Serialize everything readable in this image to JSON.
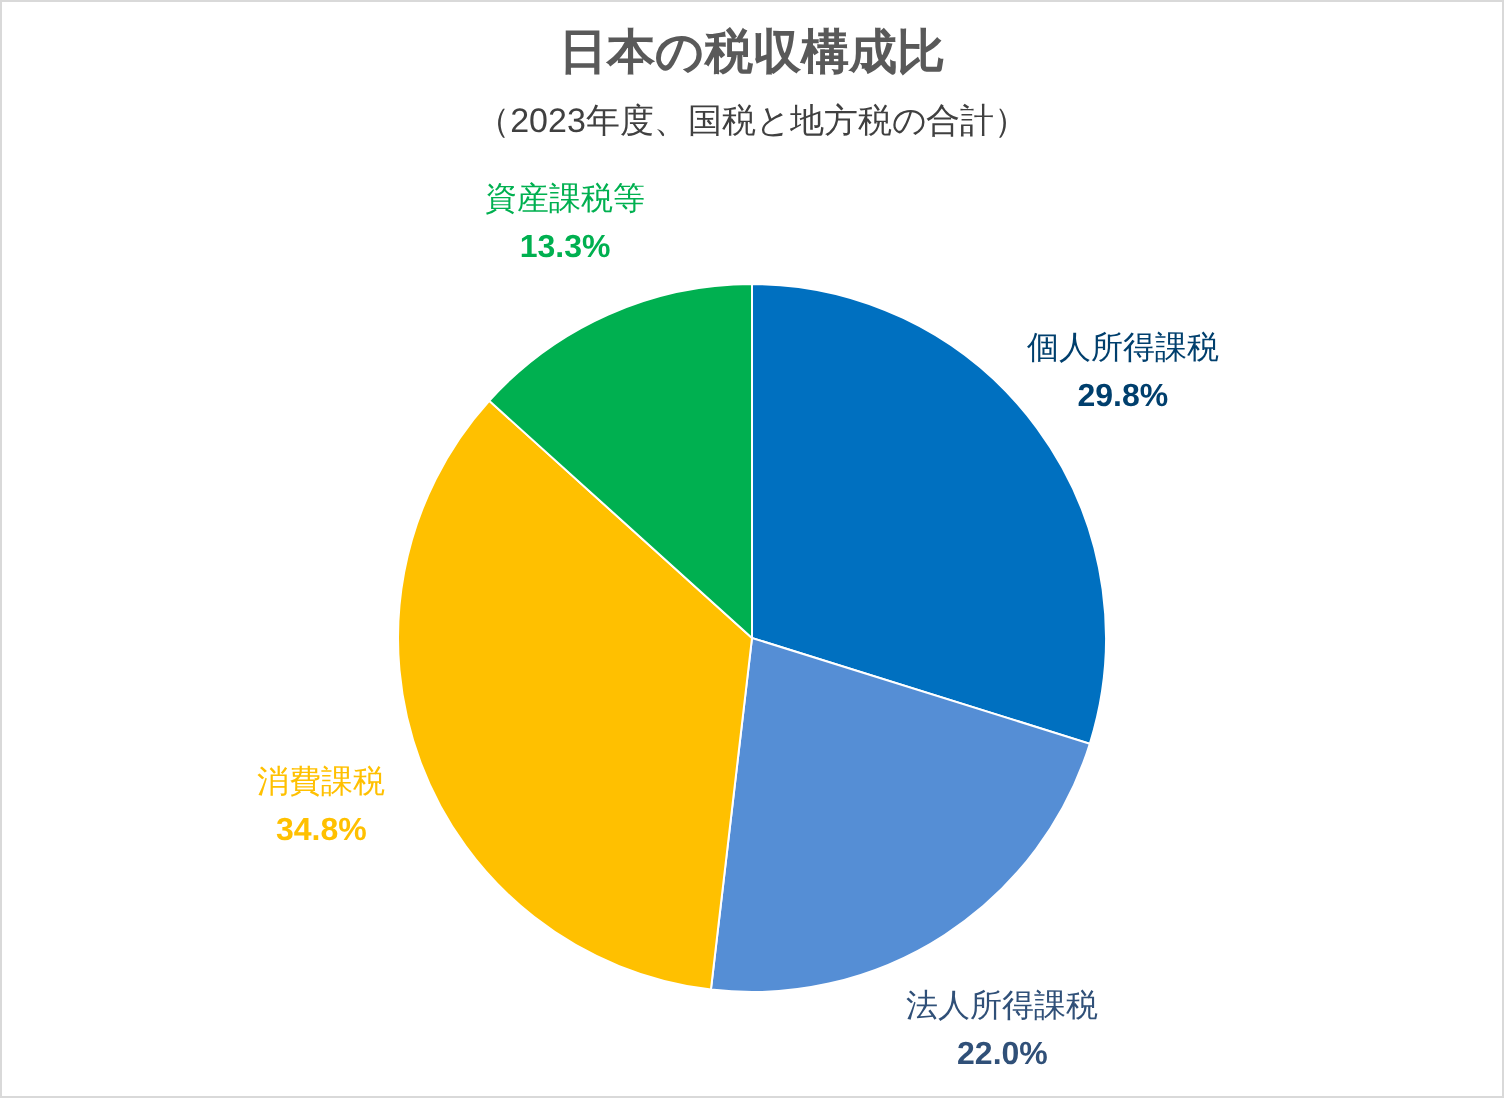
{
  "chart_data": {
    "type": "pie",
    "title": "日本の税収構成比",
    "subtitle": "（2023年度、国税と地方税の合計）",
    "categories": [
      "個人所得課税",
      "法人所得課税",
      "消費課税",
      "資産課税等"
    ],
    "values": [
      29.8,
      22.0,
      34.8,
      13.3
    ],
    "colors": [
      "#0070c0",
      "#558ed5",
      "#ffc000",
      "#00b050"
    ],
    "value_labels": [
      "29.8%",
      "22.0%",
      "34.8%",
      "13.3%"
    ],
    "legend": false
  }
}
